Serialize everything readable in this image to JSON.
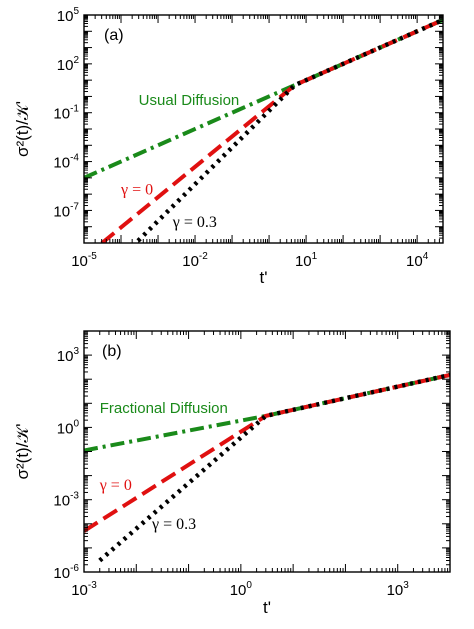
{
  "chart_data": [
    {
      "type": "line",
      "panel_label": "(a)",
      "xlabel": "t'",
      "ylabel": "σ²(t)/𝒦'",
      "xscale": "log",
      "yscale": "log",
      "xlim": [
        1e-05,
        50000
      ],
      "ylim": [
        1e-09,
        100000
      ],
      "x_ticks": [
        {
          "mantissa": "10",
          "exp": "-5",
          "value": 1e-05
        },
        {
          "mantissa": "10",
          "exp": "-2",
          "value": 0.01
        },
        {
          "mantissa": "10",
          "exp": "1",
          "value": 10
        },
        {
          "mantissa": "10",
          "exp": "4",
          "value": 10000
        }
      ],
      "y_ticks": [
        {
          "mantissa": "10",
          "exp": "-7",
          "value": 1e-07
        },
        {
          "mantissa": "10",
          "exp": "-4",
          "value": 0.0001
        },
        {
          "mantissa": "10",
          "exp": "-1",
          "value": 0.1
        },
        {
          "mantissa": "10",
          "exp": "2",
          "value": 100
        },
        {
          "mantissa": "10",
          "exp": "5",
          "value": 100000
        }
      ],
      "grid": false,
      "annotations": [
        {
          "id": "usual",
          "text": "Usual Diffusion",
          "color": "#1a8a1a",
          "x": 0.0003,
          "y": 0.3
        },
        {
          "id": "g0",
          "text": "γ = 0",
          "color": "#e01010",
          "x": 0.0001,
          "y": 9.5e-07
        },
        {
          "id": "g03",
          "text": "γ = 0.3",
          "color": "#000000",
          "x": 0.0025,
          "y": 9.5e-09
        }
      ],
      "series": [
        {
          "name": "Usual Diffusion",
          "color": "#1a8a1a",
          "style": "dashdot",
          "x": [
            1e-05,
            5,
            50000
          ],
          "y": [
            1e-05,
            5,
            50000
          ]
        },
        {
          "name": "γ = 0",
          "color": "#e01010",
          "style": "dash",
          "x": [
            1e-05,
            5,
            50000
          ],
          "y": [
            1.25e-10,
            5,
            50000
          ]
        },
        {
          "name": "γ = 0.3",
          "color": "#000000",
          "style": "dot",
          "x": [
            0.0001,
            5,
            50000
          ],
          "y": [
            1.25e-10,
            5,
            50000
          ]
        }
      ]
    },
    {
      "type": "line",
      "panel_label": "(b)",
      "xlabel": "t'",
      "ylabel": "σ²(t)/𝒦'",
      "xscale": "log",
      "yscale": "log",
      "xlim": [
        0.001,
        10000
      ],
      "ylim": [
        1e-06,
        10000
      ],
      "x_ticks": [
        {
          "mantissa": "10",
          "exp": "-3",
          "value": 0.001
        },
        {
          "mantissa": "10",
          "exp": "0",
          "value": 1
        },
        {
          "mantissa": "10",
          "exp": "3",
          "value": 1000
        }
      ],
      "y_ticks": [
        {
          "mantissa": "10",
          "exp": "-6",
          "value": 1e-06
        },
        {
          "mantissa": "10",
          "exp": "-3",
          "value": 0.001
        },
        {
          "mantissa": "10",
          "exp": "0",
          "value": 1
        },
        {
          "mantissa": "10",
          "exp": "3",
          "value": 1000
        }
      ],
      "grid": false,
      "annotations": [
        {
          "id": "frac",
          "text": "Fractional Diffusion",
          "color": "#1a8a1a",
          "x": 0.002,
          "y": 4
        },
        {
          "id": "g0",
          "text": "γ = 0",
          "color": "#e01010",
          "x": 0.002,
          "y": 0.0025
        },
        {
          "id": "g03",
          "text": "γ = 0.3",
          "color": "#000000",
          "x": 0.02,
          "y": 6e-05
        }
      ],
      "series": [
        {
          "name": "Fractional Diffusion",
          "color": "#1a8a1a",
          "style": "dashdot",
          "x": [
            0.001,
            3,
            10000
          ],
          "y": [
            0.11,
            3,
            150
          ]
        },
        {
          "name": "γ = 0",
          "color": "#e01010",
          "style": "dash",
          "x": [
            0.001,
            3,
            10000
          ],
          "y": [
            5e-05,
            3,
            150
          ]
        },
        {
          "name": "γ = 0.3",
          "color": "#000000",
          "style": "dot",
          "x": [
            0.002,
            3,
            10000
          ],
          "y": [
            3e-06,
            3,
            150
          ]
        }
      ]
    }
  ]
}
